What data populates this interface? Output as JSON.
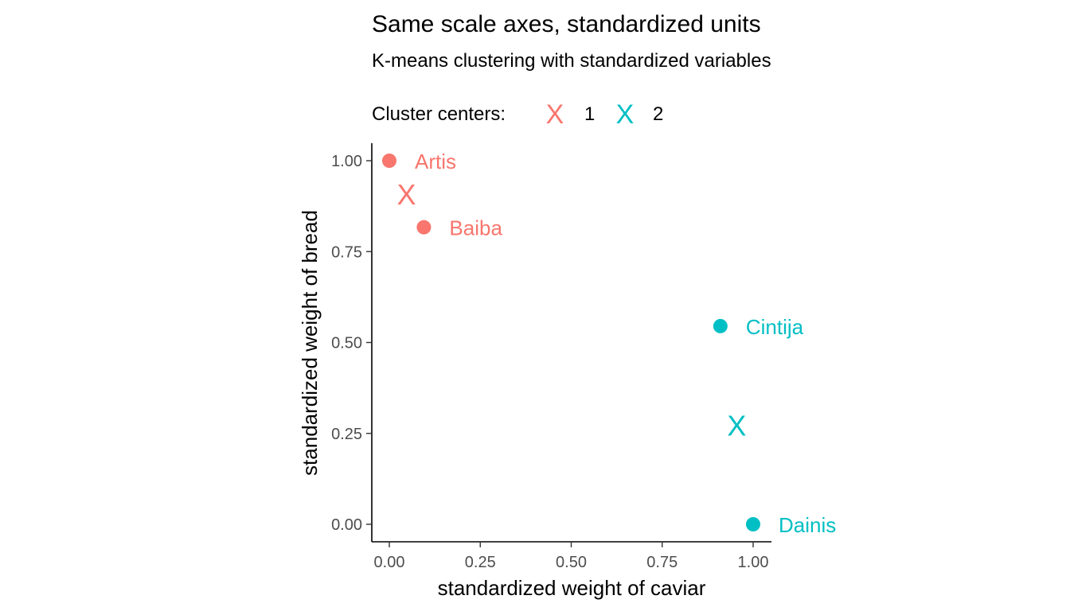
{
  "chart_data": {
    "type": "scatter",
    "title": "Same scale axes, standardized units",
    "subtitle": "K-means clustering with standardized variables",
    "xlabel": "standardized weight of caviar",
    "ylabel": "standardized weight of bread",
    "xlim": [
      0,
      1
    ],
    "ylim": [
      0,
      1
    ],
    "x_ticks": [
      "0.00",
      "0.25",
      "0.50",
      "0.75",
      "1.00"
    ],
    "y_ticks": [
      "0.00",
      "0.25",
      "0.50",
      "0.75",
      "1.00"
    ],
    "grid": false,
    "legend": {
      "title": "Cluster centers:",
      "position": "top-left",
      "items": [
        {
          "symbol": "X",
          "label": "1",
          "color": "#F8766D"
        },
        {
          "symbol": "X",
          "label": "2",
          "color": "#00BFC4"
        }
      ]
    },
    "points": [
      {
        "label": "Artis",
        "x": 0.0,
        "y": 1.0,
        "cluster": "1",
        "color": "#F8766D"
      },
      {
        "label": "Baiba",
        "x": 0.095,
        "y": 0.817,
        "cluster": "1",
        "color": "#F8766D"
      },
      {
        "label": "Cintija",
        "x": 0.91,
        "y": 0.545,
        "cluster": "2",
        "color": "#00BFC4"
      },
      {
        "label": "Dainis",
        "x": 1.0,
        "y": 0.0,
        "cluster": "2",
        "color": "#00BFC4"
      }
    ],
    "centers": [
      {
        "symbol": "X",
        "x": 0.047,
        "y": 0.908,
        "cluster": "1",
        "color": "#F8766D"
      },
      {
        "symbol": "X",
        "x": 0.955,
        "y": 0.272,
        "cluster": "2",
        "color": "#00BFC4"
      }
    ]
  }
}
